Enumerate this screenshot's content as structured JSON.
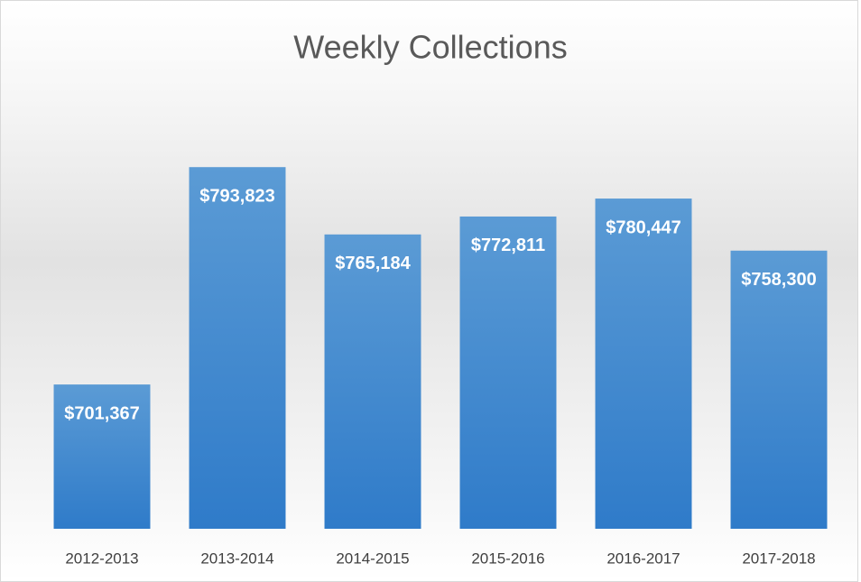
{
  "chart_data": {
    "type": "bar",
    "title": "Weekly Collections",
    "categories": [
      "2012-2013",
      "2013-2014",
      "2014-2015",
      "2015-2016",
      "2016-2017",
      "2017-2018"
    ],
    "values": [
      701367,
      793823,
      765184,
      772811,
      780447,
      758300
    ],
    "value_labels": [
      "$701,367",
      "$793,823",
      "$765,184",
      "$772,811",
      "$780,447",
      "$758,300"
    ],
    "color": "#4a8fd6",
    "ylim": [
      640000,
      820000
    ]
  }
}
